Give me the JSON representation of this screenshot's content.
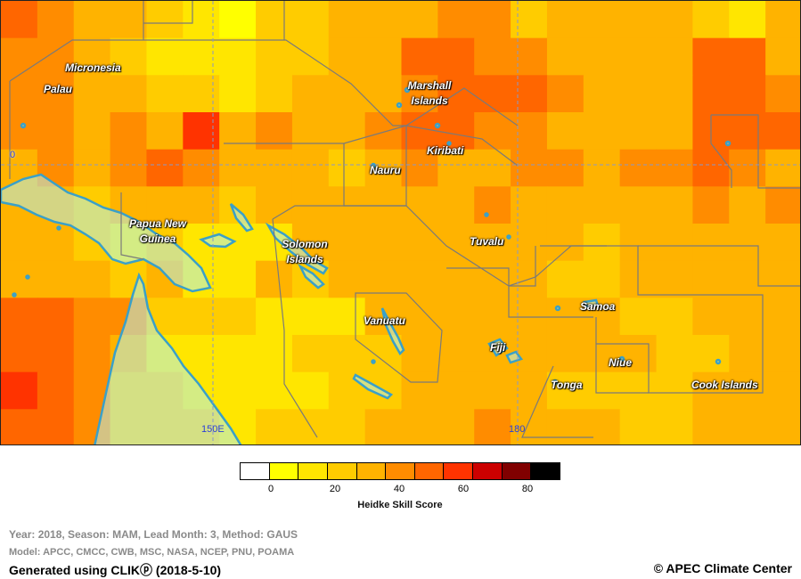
{
  "map": {
    "labels": {
      "micronesia": "Micronesia",
      "palau": "Palau",
      "marshall": "Marshall Islands",
      "kiribati": "Kiribati",
      "nauru": "Nauru",
      "png": "Papua New Guinea",
      "solomon": "Solomon Islands",
      "tuvalu": "Tuvalu",
      "samoa": "Samoa",
      "vanuatu": "Vanuatu",
      "fiji": "Fiji",
      "niue": "Niue",
      "tonga": "Tonga",
      "cook": "Cook Islands"
    },
    "meridians": {
      "lon150": "150E",
      "lon180": "180"
    },
    "equator": "0"
  },
  "legend": {
    "colors": [
      "#ffffff",
      "#ffff00",
      "#ffe600",
      "#ffcc00",
      "#ffb300",
      "#ff8c00",
      "#ff6600",
      "#ff3300",
      "#cc0000",
      "#800000",
      "#000000"
    ],
    "ticks": [
      "0",
      "20",
      "40",
      "60",
      "80"
    ],
    "title": "Heidke Skill Score"
  },
  "footer": {
    "meta_line1": "Year: 2018, Season: MAM, Lead Month: 3, Method: GAUS",
    "meta_line2": "Model: APCC, CMCC, CWB, MSC, NASA, NCEP, PNU, POAMA",
    "generated": "Generated using CLIKⓟ (2018-5-10)",
    "credit": "© APEC Climate Center"
  }
}
